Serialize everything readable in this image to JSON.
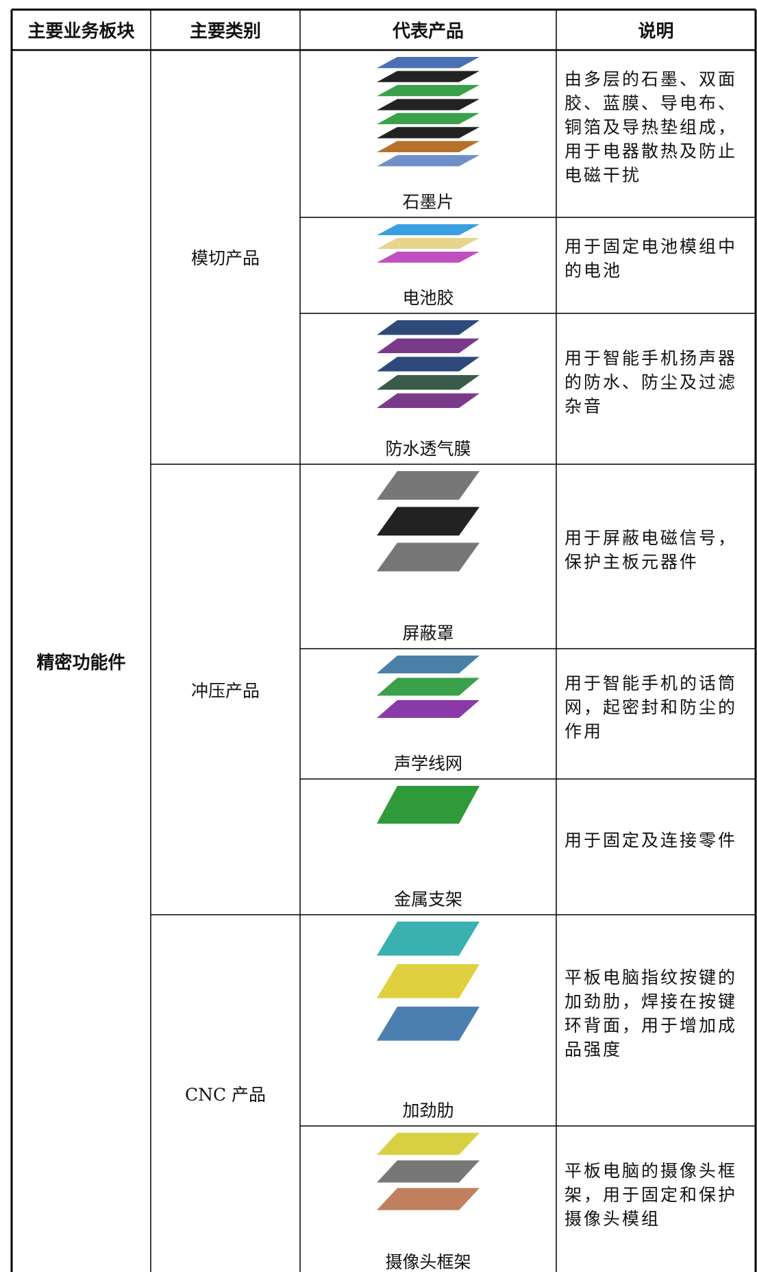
{
  "table": {
    "columns": [
      "主要业务板块",
      "主要类别",
      "代表产品",
      "说明"
    ],
    "segment": "精密功能件",
    "categories": [
      {
        "name": "模切产品",
        "products": [
          {
            "name": "石墨片",
            "description": "由多层的石墨、双面胶、蓝膜、导电布、铜箔及导热垫组成，用于电器散热及防止电磁干扰"
          },
          {
            "name": "电池胶",
            "description": "用于固定电池模组中的电池"
          },
          {
            "name": "防水透气膜",
            "description": "用于智能手机扬声器的防水、防尘及过滤杂音"
          }
        ]
      },
      {
        "name": "冲压产品",
        "products": [
          {
            "name": "屏蔽罩",
            "description": "用于屏蔽电磁信号，保护主板元器件"
          },
          {
            "name": "声学线网",
            "description": "用于智能手机的话筒网，起密封和防尘的作用"
          },
          {
            "name": "金属支架",
            "description": "用于固定及连接零件"
          }
        ]
      },
      {
        "name": "CNC 产品",
        "products": [
          {
            "name": "加劲肋",
            "description": "平板电脑指纹按键的加劲肋，焊接在按键环背面，用于增加成品强度"
          },
          {
            "name": "摄像头框架",
            "description": "平板电脑的摄像头框架，用于固定和保护摄像头模组"
          }
        ]
      }
    ]
  }
}
